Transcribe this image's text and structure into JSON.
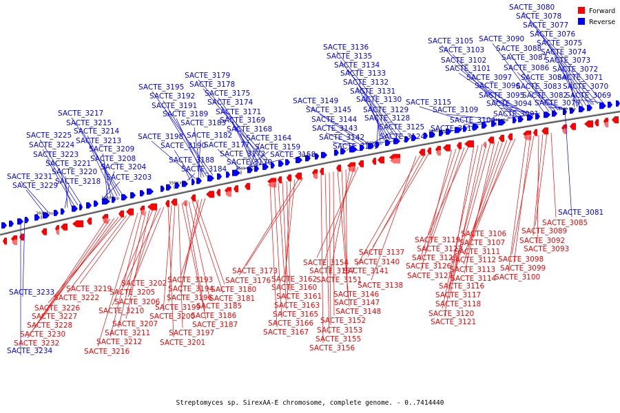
{
  "title": "Streptomyces sp. SirexAA-E chromosome, complete genome. - 0..7414440",
  "legend": [
    {
      "label": "Forward",
      "color": "#ff0000"
    },
    {
      "label": "Reverse",
      "color": "#0000ff"
    }
  ],
  "axis_ticks": [
    "3600 kbp",
    "3580 kbp",
    "3560 kbp",
    "3540 kbp",
    "3520 kbp",
    "3500 kbp",
    "3480 kbp",
    "3460 kbp",
    "3440 kbp"
  ],
  "reverse_genes": [
    "SACTE_3080",
    "SACTE_3078",
    "SACTE_3077",
    "SACTE_3076",
    "SACTE_3075",
    "SACTE_3074",
    "SACTE_3073",
    "SACTE_3072",
    "SACTE_3071",
    "SACTE_3070",
    "SACTE_3069",
    "SACTE_3079",
    "SACTE_3082",
    "SACTE_3083",
    "SACTE_3084",
    "SACTE_3086",
    "SACTE_3087",
    "SACTE_3088",
    "SACTE_3090",
    "SACTE_3091",
    "SACTE_3094",
    "SACTE_3095",
    "SACTE_3096",
    "SACTE_3097",
    "SACTE_3101",
    "SACTE_3102",
    "SACTE_3103",
    "SACTE_3105",
    "SACTE_3104",
    "SACTE_3109",
    "SACTE_3110",
    "SACTE_3115",
    "SACTE_3136",
    "SACTE_3135",
    "SACTE_3134",
    "SACTE_3133",
    "SACTE_3132",
    "SACTE_3131",
    "SACTE_3130",
    "SACTE_3129",
    "SACTE_3128",
    "SACTE_3125",
    "SACTE_3124",
    "SACTE_3149",
    "SACTE_3145",
    "SACTE_3144",
    "SACTE_3143",
    "SACTE_3142",
    "SACTE_3139",
    "SACTE_3179",
    "SACTE_3178",
    "SACTE_3175",
    "SACTE_3174",
    "SACTE_3171",
    "SACTE_3169",
    "SACTE_3168",
    "SACTE_3164",
    "SACTE_3159",
    "SACTE_3158",
    "SACTE_3177",
    "SACTE_3172",
    "SACTE_3170",
    "SACTE_3195",
    "SACTE_3192",
    "SACTE_3191",
    "SACTE_3189",
    "SACTE_3183",
    "SACTE_3182",
    "SACTE_3198",
    "SACTE_3190",
    "SACTE_3188",
    "SACTE_3184",
    "SACTE_3217",
    "SACTE_3215",
    "SACTE_3214",
    "SACTE_3213",
    "SACTE_3209",
    "SACTE_3208",
    "SACTE_3204",
    "SACTE_3203",
    "SACTE_3225",
    "SACTE_3224",
    "SACTE_3223",
    "SACTE_3221",
    "SACTE_3220",
    "SACTE_3218",
    "SACTE_3231",
    "SACTE_3229",
    "SACTE_3081",
    "SACTE_3233",
    "SACTE_3234"
  ],
  "forward_genes": [
    "SACTE_3085",
    "SACTE_3089",
    "SACTE_3092",
    "SACTE_3093",
    "SACTE_3098",
    "SACTE_3099",
    "SACTE_3100",
    "SACTE_3106",
    "SACTE_3107",
    "SACTE_3111",
    "SACTE_3112",
    "SACTE_3113",
    "SACTE_3114",
    "SACTE_3116",
    "SACTE_3117",
    "SACTE_3118",
    "SACTE_3120",
    "SACTE_3121",
    "SACTE_3119",
    "SACTE_3122",
    "SACTE_3123",
    "SACTE_3126",
    "SACTE_3127",
    "SACTE_3137",
    "SACTE_3140",
    "SACTE_3141",
    "SACTE_3138",
    "SACTE_3154",
    "SACTE_3157",
    "SACTE_3151",
    "SACTE_3146",
    "SACTE_3147",
    "SACTE_3148",
    "SACTE_3152",
    "SACTE_3153",
    "SACTE_3155",
    "SACTE_3156",
    "SACTE_3173",
    "SACTE_3176",
    "SACTE_3162",
    "SACTE_3160",
    "SACTE_3161",
    "SACTE_3163",
    "SACTE_3165",
    "SACTE_3166",
    "SACTE_3167",
    "SACTE_3193",
    "SACTE_3194",
    "SACTE_3196",
    "SACTE_3180",
    "SACTE_3181",
    "SACTE_3185",
    "SACTE_3186",
    "SACTE_3187",
    "SACTE_3197",
    "SACTE_3199",
    "SACTE_3200",
    "SACTE_3201",
    "SACTE_3202",
    "SACTE_3205",
    "SACTE_3206",
    "SACTE_3210",
    "SACTE_3207",
    "SACTE_3211",
    "SACTE_3212",
    "SACTE_3216",
    "SACTE_3219",
    "SACTE_3222",
    "SACTE_3226",
    "SACTE_3227",
    "SACTE_3228",
    "SACTE_3230",
    "SACTE_3232"
  ]
}
